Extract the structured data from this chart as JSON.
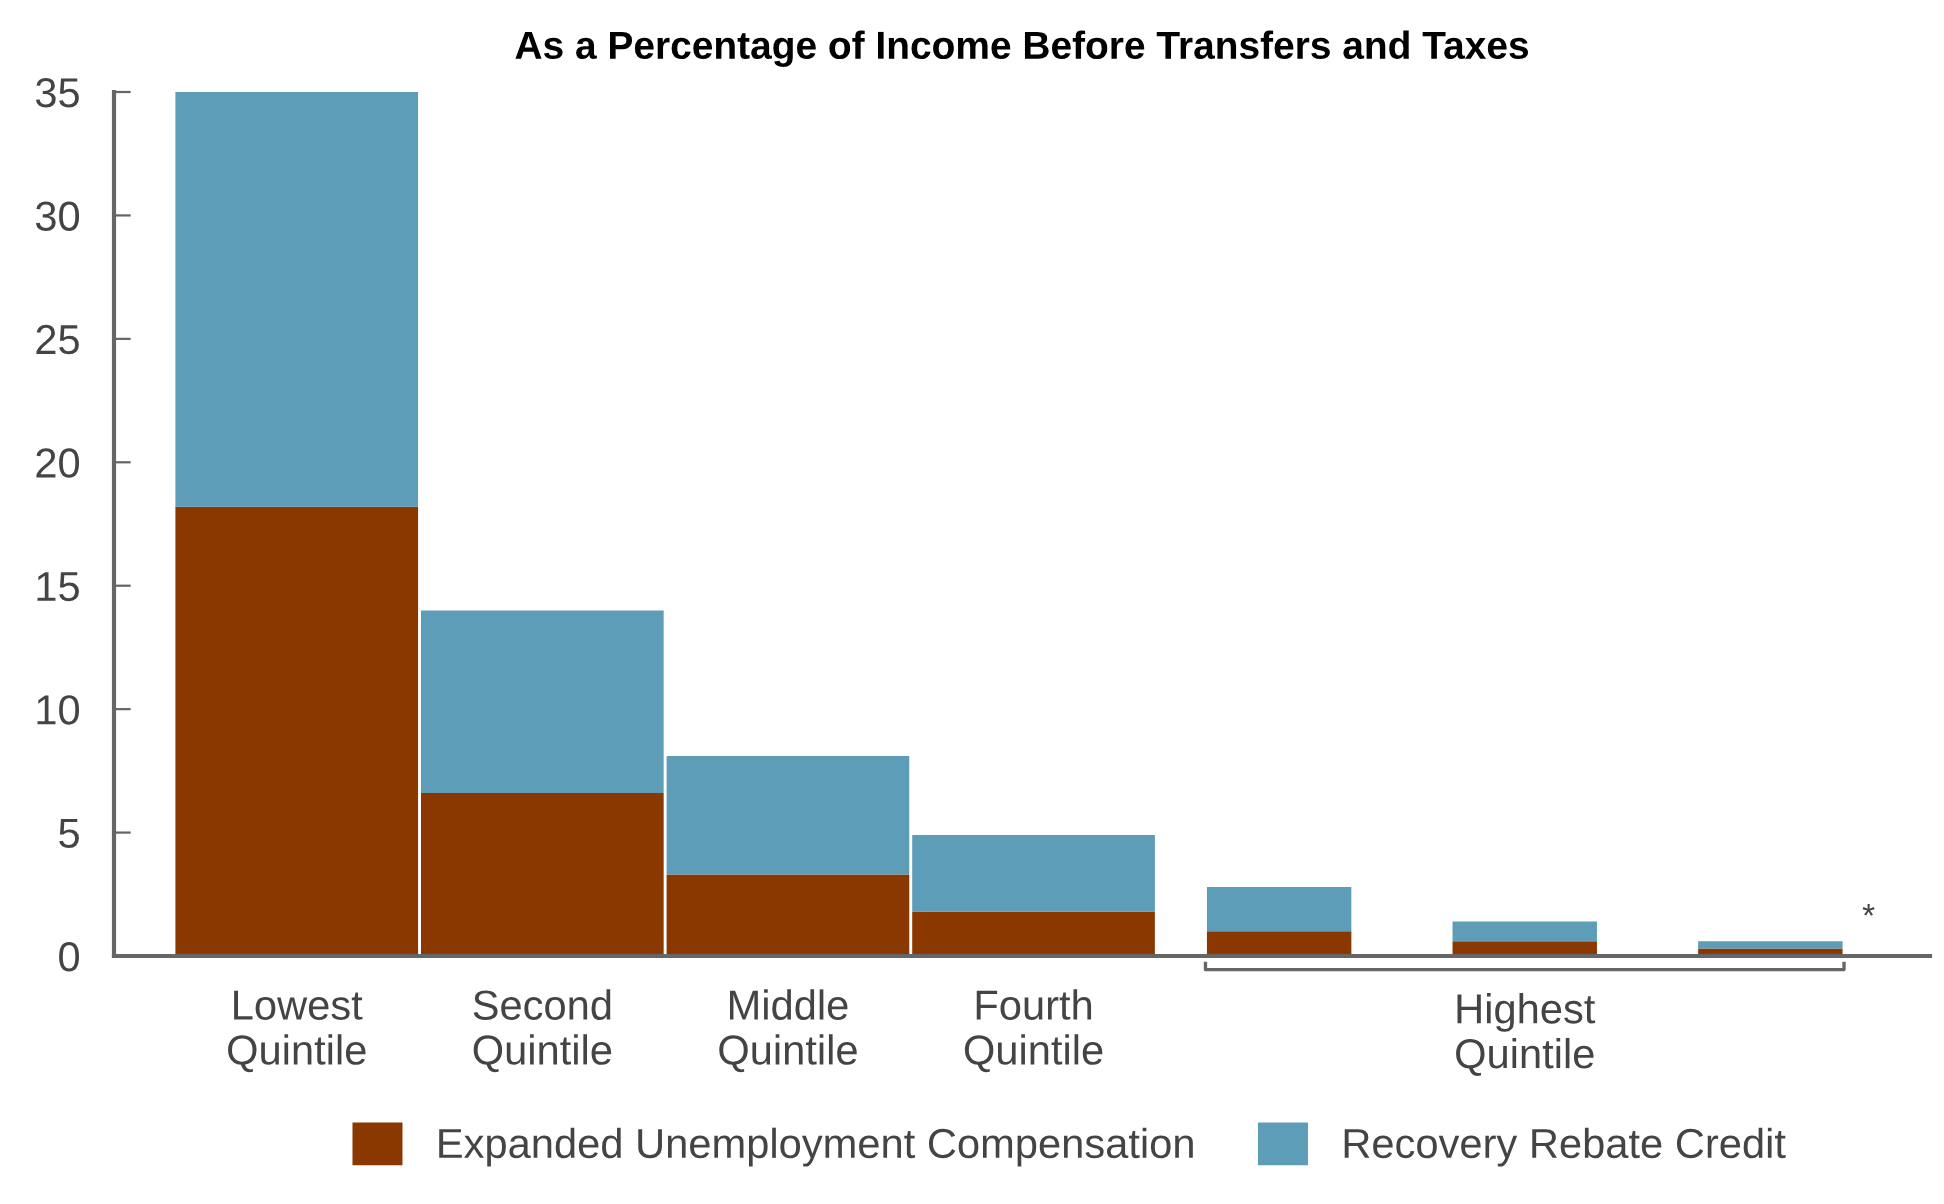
{
  "chart_data": {
    "type": "bar",
    "stacked": true,
    "title": "As a Percentage of Income Before Transfers and Taxes",
    "categories": [
      "Lowest\nQuintile",
      "Second\nQuintile",
      "Middle\nQuintile",
      "Fourth\nQuintile",
      null,
      null,
      null
    ],
    "series": [
      {
        "name": "Expanded Unemployment Compensation",
        "color": "#8b3700",
        "values": [
          18.2,
          6.6,
          3.3,
          1.8,
          1.0,
          0.6,
          0.3
        ]
      },
      {
        "name": "Recovery Rebate Credit",
        "color": "#5d9db7",
        "values": [
          16.8,
          7.4,
          4.8,
          3.1,
          1.8,
          0.8,
          0.3
        ]
      }
    ],
    "ylim": [
      0,
      35
    ],
    "yticks": [
      0,
      5,
      10,
      15,
      20,
      25,
      30,
      35
    ],
    "annotations": [
      "Highest\nQuintile",
      "*"
    ],
    "legend": "bottom",
    "grid": false
  }
}
